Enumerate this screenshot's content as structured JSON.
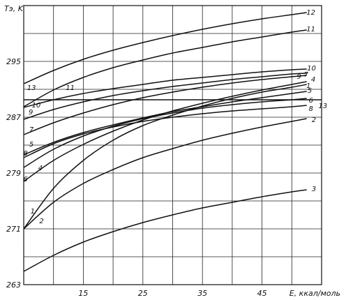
{
  "chart_data": {
    "type": "line",
    "title": "",
    "xlabel": "E, ккал/моль",
    "ylabel": "Tэ, K",
    "xlim": [
      5,
      55
    ],
    "ylim": [
      263,
      303
    ],
    "x_tick_values": [
      15,
      25,
      35,
      45
    ],
    "x_tick_labels": [
      "15",
      "25",
      "35",
      "45"
    ],
    "y_tick_values": [
      263,
      271,
      279,
      287,
      295
    ],
    "y_tick_labels": [
      "263",
      "271",
      "279",
      "287",
      "295"
    ],
    "grid": true,
    "series": [
      {
        "name": "1",
        "label_at": [
          [
            6.5,
            273.6
          ],
          [
            52.8,
            291.6
          ]
        ],
        "points": [
          [
            5,
            271
          ],
          [
            10,
            276.8
          ],
          [
            15,
            280.8
          ],
          [
            20,
            283.7
          ],
          [
            25,
            285.8
          ],
          [
            30,
            287.3
          ],
          [
            35,
            288.6
          ],
          [
            40,
            289.7
          ],
          [
            45,
            290.6
          ],
          [
            50,
            291.3
          ],
          [
            52.5,
            291.7
          ]
        ]
      },
      {
        "name": "2",
        "label_at": [
          [
            8,
            272.2
          ],
          [
            53.7,
            286.7
          ]
        ],
        "points": [
          [
            5,
            271
          ],
          [
            10,
            274.8
          ],
          [
            15,
            277.5
          ],
          [
            20,
            279.5
          ],
          [
            25,
            281.2
          ],
          [
            30,
            282.5
          ],
          [
            35,
            283.7
          ],
          [
            40,
            284.7
          ],
          [
            45,
            285.6
          ],
          [
            50,
            286.4
          ],
          [
            52.5,
            286.8
          ]
        ]
      },
      {
        "name": "3",
        "label_at": [
          [
            53.7,
            276.8
          ]
        ],
        "points": [
          [
            5,
            264.9
          ],
          [
            10,
            267.2
          ],
          [
            15,
            269.1
          ],
          [
            20,
            270.6
          ],
          [
            25,
            271.9
          ],
          [
            30,
            273
          ],
          [
            35,
            274
          ],
          [
            40,
            274.8
          ],
          [
            45,
            275.6
          ],
          [
            50,
            276.3
          ],
          [
            52.5,
            276.6
          ]
        ]
      },
      {
        "name": "4",
        "label_at": [
          [
            7.8,
            279.8
          ],
          [
            53.6,
            292.5
          ]
        ],
        "points": [
          [
            5,
            277.8
          ],
          [
            10,
            280.8
          ],
          [
            15,
            283.1
          ],
          [
            20,
            285
          ],
          [
            25,
            286.6
          ],
          [
            30,
            287.9
          ],
          [
            35,
            289
          ],
          [
            40,
            290
          ],
          [
            45,
            290.9
          ],
          [
            50,
            291.7
          ],
          [
            52.5,
            292.1
          ]
        ]
      },
      {
        "name": "5",
        "label_at": [
          [
            6.3,
            283.2
          ],
          [
            53,
            290.9
          ]
        ],
        "points": [
          [
            5,
            281.6
          ],
          [
            10,
            283.4
          ],
          [
            15,
            284.8
          ],
          [
            20,
            285.9
          ],
          [
            25,
            286.9
          ],
          [
            30,
            287.8
          ],
          [
            35,
            288.5
          ],
          [
            40,
            289.2
          ],
          [
            45,
            289.8
          ],
          [
            50,
            290.4
          ],
          [
            52.5,
            290.7
          ]
        ]
      },
      {
        "name": "6",
        "label_at": [
          [
            5.3,
            278.2
          ],
          [
            53.2,
            289.5
          ]
        ],
        "points": [
          [
            5,
            279.8
          ],
          [
            10,
            282.4
          ],
          [
            15,
            284.3
          ],
          [
            20,
            285.7
          ],
          [
            25,
            286.8
          ],
          [
            30,
            287.6
          ],
          [
            35,
            288.3
          ],
          [
            40,
            288.8
          ],
          [
            45,
            289.2
          ],
          [
            50,
            289.5
          ],
          [
            52.5,
            289.7
          ]
        ]
      },
      {
        "name": "7",
        "label_at": [
          [
            6.3,
            285.3
          ],
          [
            52.4,
            293.2
          ]
        ],
        "points": [
          [
            5,
            284.5
          ],
          [
            10,
            286.2
          ],
          [
            15,
            287.6
          ],
          [
            20,
            288.8
          ],
          [
            25,
            289.8
          ],
          [
            30,
            290.6
          ],
          [
            35,
            291.3
          ],
          [
            40,
            291.9
          ],
          [
            45,
            292.4
          ],
          [
            50,
            292.8
          ],
          [
            52.5,
            293
          ]
        ]
      },
      {
        "name": "8",
        "label_at": [
          [
            5.3,
            281.9
          ],
          [
            53.2,
            288.3
          ]
        ],
        "points": [
          [
            5,
            281.2
          ],
          [
            10,
            283.2
          ],
          [
            15,
            284.6
          ],
          [
            20,
            285.6
          ],
          [
            25,
            286.4
          ],
          [
            30,
            287
          ],
          [
            35,
            287.5
          ],
          [
            40,
            287.9
          ],
          [
            45,
            288.2
          ],
          [
            50,
            288.5
          ],
          [
            52.5,
            288.7
          ]
        ]
      },
      {
        "name": "9",
        "label_at": [
          [
            6.2,
            287.8
          ],
          [
            51.2,
            292.9
          ]
        ],
        "points": [
          [
            5,
            286.7
          ],
          [
            10,
            288.1
          ],
          [
            15,
            289.2
          ],
          [
            20,
            290.1
          ],
          [
            25,
            290.8
          ],
          [
            30,
            291.4
          ],
          [
            35,
            291.9
          ],
          [
            40,
            292.4
          ],
          [
            45,
            292.8
          ],
          [
            50,
            293.2
          ],
          [
            52.5,
            293.3
          ]
        ]
      },
      {
        "name": "10",
        "label_at": [
          [
            7.1,
            288.8
          ],
          [
            53.3,
            294.1
          ]
        ],
        "points": [
          [
            5,
            288.4
          ],
          [
            10,
            289.5
          ],
          [
            15,
            290.4
          ],
          [
            20,
            291.1
          ],
          [
            25,
            291.7
          ],
          [
            30,
            292.3
          ],
          [
            35,
            292.7
          ],
          [
            40,
            293.1
          ],
          [
            45,
            293.5
          ],
          [
            50,
            293.8
          ],
          [
            52.5,
            293.9
          ]
        ]
      },
      {
        "name": "11",
        "label_at": [
          [
            12.8,
            291.3
          ],
          [
            53.2,
            299.7
          ]
        ],
        "points": [
          [
            5,
            288.5
          ],
          [
            10,
            290.9
          ],
          [
            15,
            292.7
          ],
          [
            20,
            294.1
          ],
          [
            25,
            295.2
          ],
          [
            30,
            296.2
          ],
          [
            35,
            297
          ],
          [
            40,
            297.8
          ],
          [
            45,
            298.5
          ],
          [
            50,
            299.2
          ],
          [
            52.5,
            299.5
          ]
        ]
      },
      {
        "name": "12",
        "label_at": [
          [
            53.2,
            302.1
          ]
        ],
        "points": [
          [
            5,
            291.8
          ],
          [
            10,
            293.7
          ],
          [
            15,
            295.3
          ],
          [
            20,
            296.6
          ],
          [
            25,
            297.7
          ],
          [
            30,
            298.7
          ],
          [
            35,
            299.6
          ],
          [
            40,
            300.4
          ],
          [
            45,
            301.1
          ],
          [
            50,
            301.7
          ],
          [
            52.5,
            302
          ]
        ]
      },
      {
        "name": "13",
        "label_at": [
          [
            6.3,
            291.3
          ],
          [
            55.2,
            288.7
          ]
        ],
        "points": [
          [
            5,
            289.5
          ],
          [
            55,
            289.5
          ]
        ]
      }
    ]
  }
}
